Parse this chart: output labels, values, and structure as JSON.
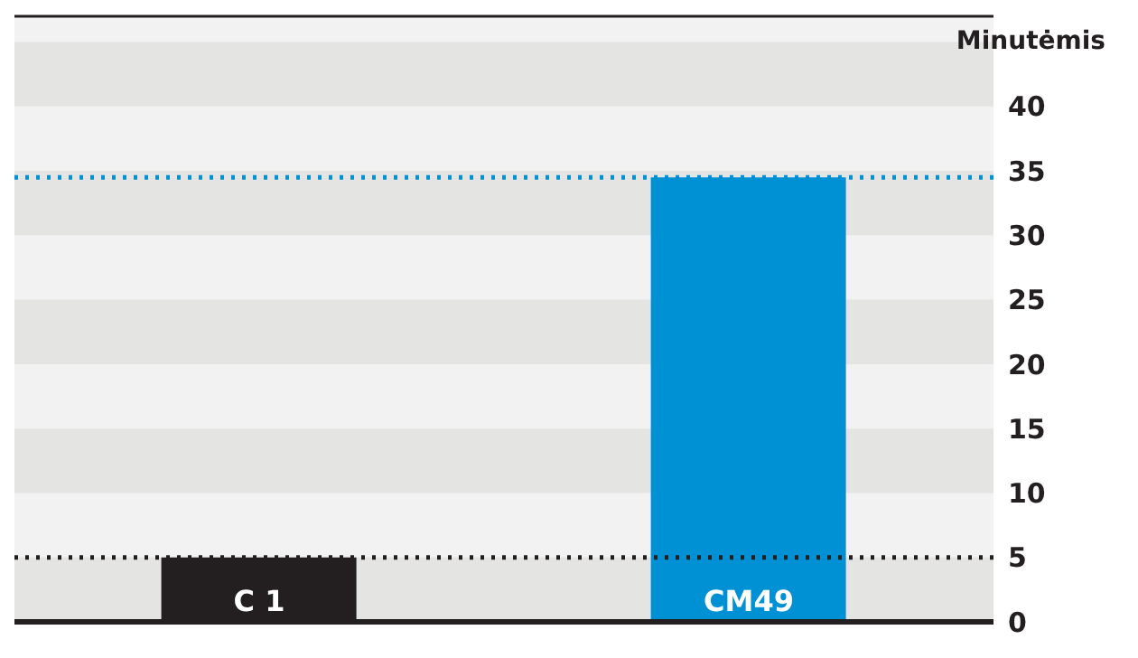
{
  "chart_data": {
    "type": "bar",
    "ylabel": "Minutėmis",
    "categories": [
      "C 1",
      "CM49"
    ],
    "values": [
      5,
      34.5
    ],
    "colors": [
      "#231f20",
      "#0090d4"
    ],
    "ylim": [
      0,
      47
    ],
    "yticks": [
      0,
      5,
      10,
      15,
      20,
      25,
      30,
      35,
      40
    ],
    "bands": [
      {
        "axis": "y",
        "from": 0,
        "to": 5,
        "color": "#e4e4e3"
      },
      {
        "axis": "y",
        "from": 10,
        "to": 15,
        "color": "#e4e4e3"
      },
      {
        "axis": "y",
        "from": 20,
        "to": 25,
        "color": "#e4e4e3"
      },
      {
        "axis": "y",
        "from": 30,
        "to": 35,
        "color": "#e4e4e3"
      },
      {
        "axis": "y",
        "from": 40,
        "to": 45,
        "color": "#e4e4e3"
      }
    ],
    "ref_lines": [
      {
        "axis": "y",
        "value": 5,
        "color": "#231f20",
        "line_style": "dotted"
      },
      {
        "axis": "y",
        "value": 34.5,
        "color": "#0090d4",
        "line_style": "dotted"
      }
    ]
  }
}
